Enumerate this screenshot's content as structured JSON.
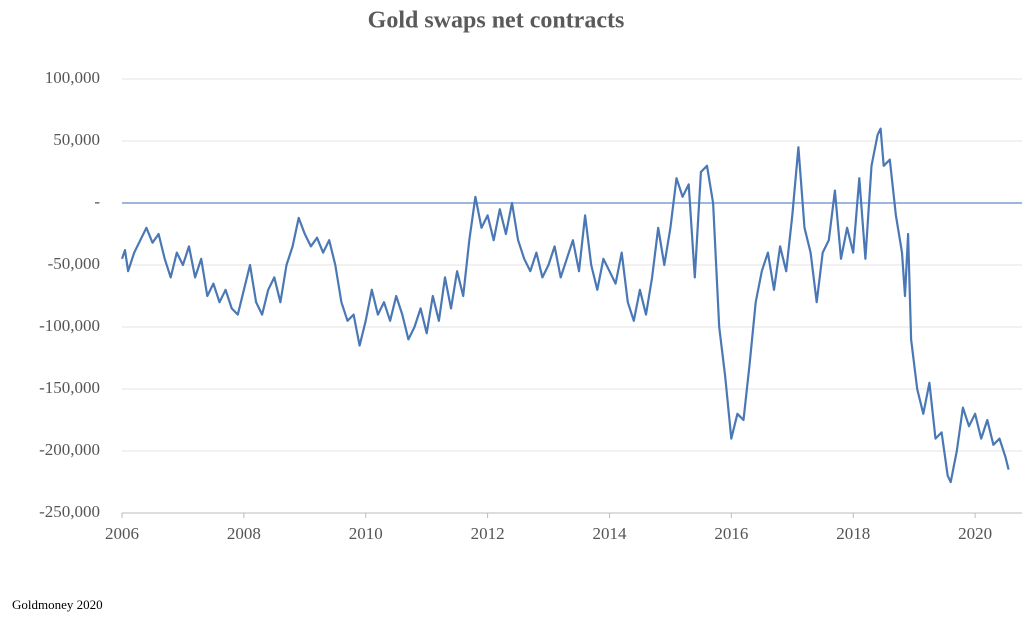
{
  "chart_data": {
    "type": "line",
    "title": "Gold swaps net  contracts",
    "source": "Goldmoney 2020",
    "xlim": [
      2006,
      2020.77
    ],
    "xticks": [
      2006,
      2008,
      2010,
      2012,
      2014,
      2016,
      2018,
      2020
    ],
    "ylim": [
      -250000,
      100000
    ],
    "yticks": [
      {
        "value": -250000,
        "label": "-250,000"
      },
      {
        "value": -200000,
        "label": "-200,000"
      },
      {
        "value": -150000,
        "label": "-150,000"
      },
      {
        "value": -100000,
        "label": "-100,000"
      },
      {
        "value": -50000,
        "label": "-50,000"
      },
      {
        "value": 0,
        "label": "-"
      },
      {
        "value": 50000,
        "label": "50,000"
      },
      {
        "value": 100000,
        "label": "100,000"
      }
    ],
    "grid": true,
    "grid_color": "#e3e3e3",
    "zero_line_color": "#7b9fd4",
    "series": [
      {
        "name": "Gold swaps net contracts",
        "color": "#4a78b5",
        "x": [
          2006.0,
          2006.05,
          2006.1,
          2006.2,
          2006.3,
          2006.4,
          2006.5,
          2006.6,
          2006.7,
          2006.8,
          2006.9,
          2007.0,
          2007.1,
          2007.2,
          2007.3,
          2007.4,
          2007.5,
          2007.6,
          2007.7,
          2007.8,
          2007.9,
          2008.0,
          2008.1,
          2008.2,
          2008.3,
          2008.4,
          2008.5,
          2008.6,
          2008.7,
          2008.8,
          2008.9,
          2009.0,
          2009.1,
          2009.2,
          2009.3,
          2009.4,
          2009.5,
          2009.6,
          2009.7,
          2009.8,
          2009.9,
          2010.0,
          2010.1,
          2010.2,
          2010.3,
          2010.4,
          2010.5,
          2010.6,
          2010.7,
          2010.8,
          2010.9,
          2011.0,
          2011.1,
          2011.2,
          2011.3,
          2011.4,
          2011.5,
          2011.6,
          2011.7,
          2011.8,
          2011.9,
          2012.0,
          2012.1,
          2012.2,
          2012.3,
          2012.4,
          2012.5,
          2012.6,
          2012.7,
          2012.8,
          2012.9,
          2013.0,
          2013.1,
          2013.2,
          2013.3,
          2013.4,
          2013.5,
          2013.6,
          2013.7,
          2013.8,
          2013.9,
          2014.0,
          2014.1,
          2014.2,
          2014.3,
          2014.4,
          2014.5,
          2014.6,
          2014.7,
          2014.8,
          2014.9,
          2015.0,
          2015.1,
          2015.2,
          2015.3,
          2015.4,
          2015.5,
          2015.6,
          2015.7,
          2015.8,
          2015.9,
          2016.0,
          2016.1,
          2016.2,
          2016.3,
          2016.4,
          2016.5,
          2016.6,
          2016.7,
          2016.8,
          2016.9,
          2017.0,
          2017.1,
          2017.2,
          2017.3,
          2017.4,
          2017.5,
          2017.6,
          2017.7,
          2017.8,
          2017.9,
          2018.0,
          2018.1,
          2018.2,
          2018.3,
          2018.4,
          2018.45,
          2018.5,
          2018.6,
          2018.7,
          2018.8,
          2018.85,
          2018.9,
          2018.95,
          2019.05,
          2019.15,
          2019.25,
          2019.35,
          2019.45,
          2019.55,
          2019.6,
          2019.7,
          2019.8,
          2019.9,
          2020.0,
          2020.1,
          2020.2,
          2020.3,
          2020.4,
          2020.5,
          2020.55
        ],
        "values": [
          -45000,
          -38000,
          -55000,
          -40000,
          -30000,
          -20000,
          -32000,
          -25000,
          -45000,
          -60000,
          -40000,
          -50000,
          -35000,
          -60000,
          -45000,
          -75000,
          -65000,
          -80000,
          -70000,
          -85000,
          -90000,
          -70000,
          -50000,
          -80000,
          -90000,
          -70000,
          -60000,
          -80000,
          -50000,
          -35000,
          -12000,
          -25000,
          -35000,
          -28000,
          -40000,
          -30000,
          -50000,
          -80000,
          -95000,
          -90000,
          -115000,
          -95000,
          -70000,
          -90000,
          -80000,
          -95000,
          -75000,
          -90000,
          -110000,
          -100000,
          -85000,
          -105000,
          -75000,
          -95000,
          -60000,
          -85000,
          -55000,
          -75000,
          -30000,
          5000,
          -20000,
          -10000,
          -30000,
          -5000,
          -25000,
          0,
          -30000,
          -45000,
          -55000,
          -40000,
          -60000,
          -50000,
          -35000,
          -60000,
          -45000,
          -30000,
          -55000,
          -10000,
          -50000,
          -70000,
          -45000,
          -55000,
          -65000,
          -40000,
          -80000,
          -95000,
          -70000,
          -90000,
          -60000,
          -20000,
          -50000,
          -20000,
          20000,
          5000,
          15000,
          -60000,
          25000,
          30000,
          0,
          -100000,
          -140000,
          -190000,
          -170000,
          -175000,
          -130000,
          -80000,
          -55000,
          -40000,
          -70000,
          -35000,
          -55000,
          -10000,
          45000,
          -20000,
          -40000,
          -80000,
          -40000,
          -30000,
          10000,
          -45000,
          -20000,
          -40000,
          20000,
          -45000,
          30000,
          55000,
          60000,
          30000,
          35000,
          -10000,
          -40000,
          -75000,
          -25000,
          -110000,
          -150000,
          -170000,
          -145000,
          -190000,
          -185000,
          -220000,
          -225000,
          -200000,
          -165000,
          -180000,
          -170000,
          -190000,
          -175000,
          -195000,
          -190000,
          -205000,
          -215000
        ]
      }
    ]
  }
}
